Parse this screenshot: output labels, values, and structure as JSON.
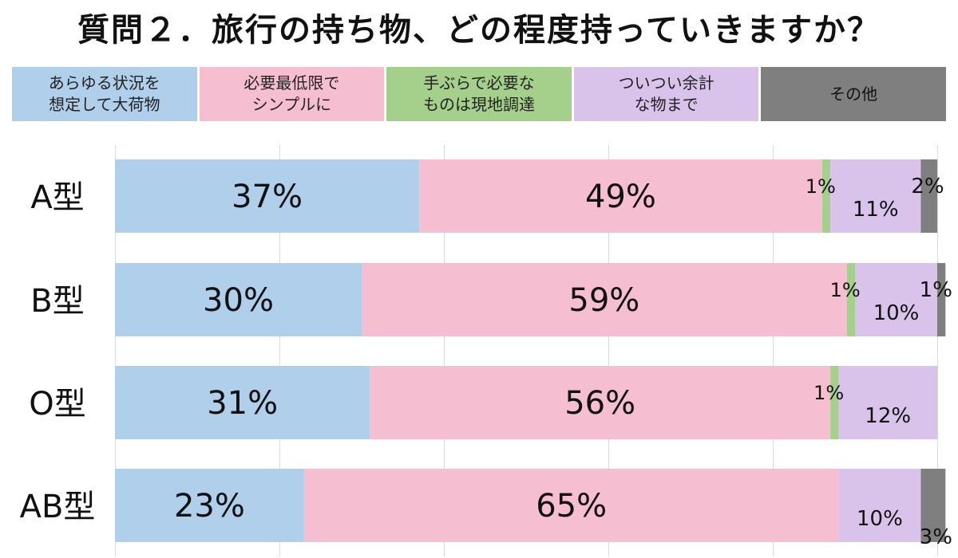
{
  "colors": {
    "series": [
      "#b0cfeb",
      "#f5bfd1",
      "#a5d08c",
      "#dac3ea",
      "#7f7f7f"
    ],
    "text": "#111111",
    "grid": "#d9d9d9"
  },
  "chart_data": {
    "type": "bar",
    "orientation": "horizontal",
    "stacked": true,
    "title": "質問２．旅行の持ち物、どの程度持っていきますか？",
    "legend_position": "top",
    "grid": true,
    "xlim": [
      0,
      100
    ],
    "categories": [
      "A型",
      "B型",
      "O型",
      "AB型"
    ],
    "series": [
      {
        "name": "あらゆる状況を\n想定して大荷物",
        "values": [
          37,
          30,
          31,
          23
        ]
      },
      {
        "name": "必要最低限で\nシンプルに",
        "values": [
          49,
          59,
          56,
          65
        ]
      },
      {
        "name": "手ぶらで必要な\nものは現地調達",
        "values": [
          1,
          1,
          1,
          0
        ]
      },
      {
        "name": "ついつい余計\nな物まで",
        "values": [
          11,
          10,
          12,
          10
        ]
      },
      {
        "name": "その他",
        "values": [
          2,
          1,
          0,
          3
        ]
      }
    ]
  }
}
